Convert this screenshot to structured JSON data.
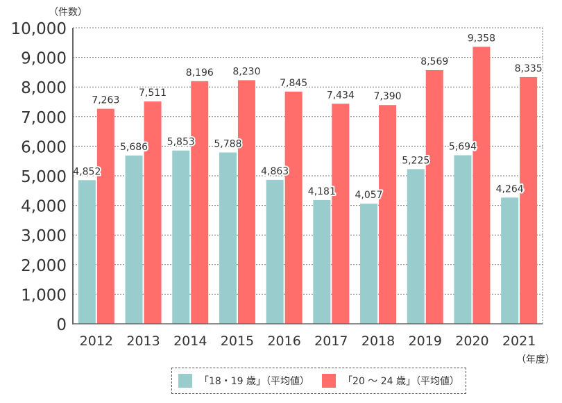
{
  "chart_data": {
    "type": "bar",
    "categories": [
      "2012",
      "2013",
      "2014",
      "2015",
      "2016",
      "2017",
      "2018",
      "2019",
      "2020",
      "2021"
    ],
    "series": [
      {
        "name": "「18・19 歳」（平均値）",
        "color": "#99cccc",
        "values": [
          4852,
          5686,
          5853,
          5788,
          4863,
          4181,
          4057,
          5225,
          5694,
          4264
        ]
      },
      {
        "name": "「20 ～ 24 歳」（平均値）",
        "color": "#ff6e6a",
        "values": [
          7263,
          7511,
          8196,
          8230,
          7845,
          7434,
          7390,
          8569,
          9358,
          8335
        ]
      }
    ],
    "ylabel": "（件数）",
    "xlabel": "（年度）",
    "ylim": [
      0,
      10000
    ],
    "yticks": [
      0,
      1000,
      2000,
      3000,
      4000,
      5000,
      6000,
      7000,
      8000,
      9000,
      10000
    ],
    "ytick_labels": [
      "0",
      "1,000",
      "2,000",
      "3,000",
      "4,000",
      "5,000",
      "6,000",
      "7,000",
      "8,000",
      "9,000",
      "10,000"
    ],
    "grid": "horizontal-dotted",
    "legend_position": "bottom"
  }
}
